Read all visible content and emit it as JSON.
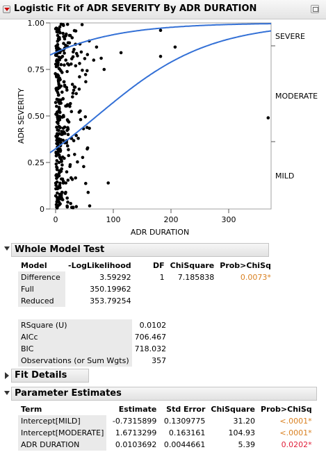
{
  "title": "Logistic Fit of ADR SEVERITY By ADR DURATION",
  "chart_data": {
    "type": "scatter",
    "xlabel": "ADR DURATION",
    "ylabel": "ADR SEVERITY",
    "xlim": [
      -10,
      370
    ],
    "ylim": [
      0,
      1
    ],
    "x_ticks": [
      "0",
      "100",
      "200",
      "300"
    ],
    "y_ticks": [
      "0",
      "0.25",
      "0.50",
      "0.75",
      "1.00"
    ],
    "right_labels": [
      "SEVERE",
      "MODERATE",
      "MILD"
    ],
    "curve_color": "#3370d6",
    "point_color": "#000000",
    "coefficients": {
      "intercept_mild": -0.7315899,
      "intercept_moderate": 1.6713299,
      "slope": 0.0103692
    },
    "outliers": [
      {
        "x": 180,
        "y": 0.96
      },
      {
        "x": 205,
        "y": 0.87
      },
      {
        "x": 180,
        "y": 0.82
      },
      {
        "x": 112,
        "y": 0.84
      },
      {
        "x": 70,
        "y": 0.87
      },
      {
        "x": 78,
        "y": 0.81
      },
      {
        "x": 83,
        "y": 0.75
      },
      {
        "x": 65,
        "y": 0.8
      },
      {
        "x": 365,
        "y": 0.49
      },
      {
        "x": 90,
        "y": 0.14
      },
      {
        "x": 35,
        "y": 0.62
      },
      {
        "x": 40,
        "y": 0.52
      },
      {
        "x": 28,
        "y": 0.92
      }
    ],
    "point_count": 357
  },
  "whole_model": {
    "title": "Whole Model Test",
    "headers": [
      "Model",
      "-LogLikelihood",
      "DF",
      "ChiSquare",
      "Prob>ChiSq"
    ],
    "rows": [
      {
        "model": "Difference",
        "loglik": "3.59292",
        "df": "1",
        "chisq": "7.185838",
        "prob": "0.0073*"
      },
      {
        "model": "Full",
        "loglik": "350.19962",
        "df": "",
        "chisq": "",
        "prob": ""
      },
      {
        "model": "Reduced",
        "loglik": "353.79254",
        "df": "",
        "chisq": "",
        "prob": ""
      }
    ],
    "stats": [
      {
        "label": "RSquare (U)",
        "value": "0.0102"
      },
      {
        "label": "AICc",
        "value": "706.467"
      },
      {
        "label": "BIC",
        "value": "718.032"
      },
      {
        "label": "Observations (or Sum Wgts)",
        "value": "357"
      }
    ]
  },
  "fit_details": {
    "title": "Fit Details"
  },
  "params": {
    "title": "Parameter Estimates",
    "headers": [
      "Term",
      "Estimate",
      "Std Error",
      "ChiSquare",
      "Prob>ChiSq"
    ],
    "rows": [
      {
        "term": "Intercept[MILD]",
        "est": "-0.7315899",
        "se": "0.1309775",
        "chisq": "31.20",
        "prob": "<.0001*"
      },
      {
        "term": "Intercept[MODERATE]",
        "est": "1.6713299",
        "se": "0.163161",
        "chisq": "104.93",
        "prob": "<.0001*"
      },
      {
        "term": "ADR DURATION",
        "est": "0.0103692",
        "se": "0.0044661",
        "chisq": "5.39",
        "prob": "0.0202*"
      }
    ]
  }
}
